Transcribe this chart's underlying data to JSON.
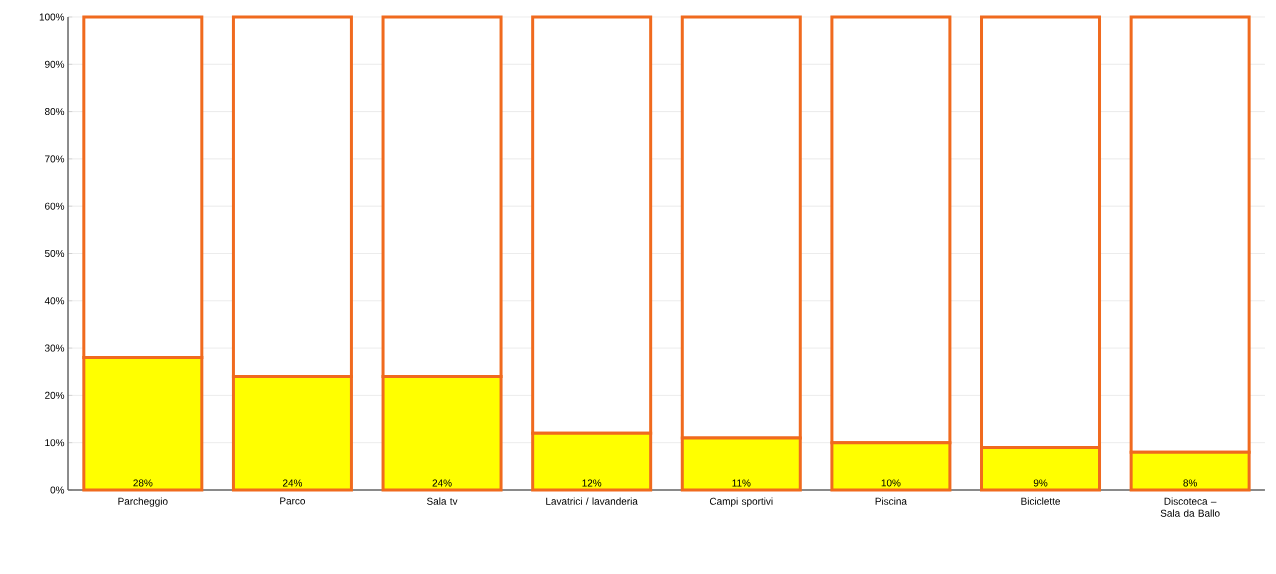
{
  "chart_data": {
    "type": "bar",
    "stacked": true,
    "categories": [
      "Parcheggio",
      "Parco",
      "Sala tv",
      "Lavatrici / lavanderia",
      "Campi sportivi",
      "Piscina",
      "Biciclette",
      "Discoteca – Sala da Ballo"
    ],
    "series": [
      {
        "color": "#ffff00",
        "values": [
          28,
          24,
          24,
          12,
          11,
          10,
          9,
          8
        ],
        "value_labels": [
          "28%",
          "24%",
          "24%",
          "12%",
          "11%",
          "10%",
          "9%",
          "8%"
        ]
      },
      {
        "color": "#ffffff",
        "values": [
          72,
          76,
          76,
          88,
          89,
          90,
          91,
          92
        ]
      }
    ],
    "ylim": [
      0,
      100
    ],
    "yticks": [
      {
        "value": 0,
        "label": "0%"
      },
      {
        "value": 10,
        "label": "10%"
      },
      {
        "value": 20,
        "label": "20%"
      },
      {
        "value": 30,
        "label": "30%"
      },
      {
        "value": 40,
        "label": "40%"
      },
      {
        "value": 50,
        "label": "50%"
      },
      {
        "value": 60,
        "label": "60%"
      },
      {
        "value": 70,
        "label": "70%"
      },
      {
        "value": 80,
        "label": "80%"
      },
      {
        "value": 90,
        "label": "90%"
      },
      {
        "value": 100,
        "label": "100%"
      }
    ],
    "grid": "y"
  }
}
